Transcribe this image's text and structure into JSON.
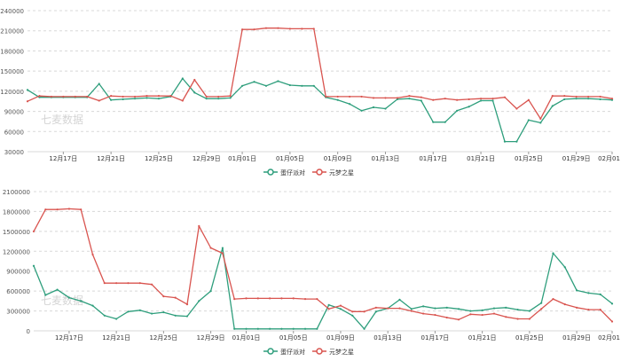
{
  "colors": {
    "series_a": "#2e9e7c",
    "series_b": "#d9544f",
    "grid": "#d8d8d8",
    "axis_text": "#333333",
    "watermark": "#b8b8b8"
  },
  "watermark_text": "七麦数据",
  "chart_data": [
    {
      "type": "line",
      "x_ticks": [
        "12月17日",
        "12月21日",
        "12月25日",
        "12月29日",
        "01月01日",
        "01月05日",
        "01月09日",
        "01月13日",
        "01月17日",
        "01月21日",
        "01月25日",
        "01月29日",
        "02月01日"
      ],
      "x_tick_index": [
        3,
        7,
        11,
        15,
        18,
        22,
        26,
        30,
        34,
        38,
        42,
        46,
        49
      ],
      "y_ticks": [
        30000,
        60000,
        90000,
        120000,
        150000,
        180000,
        210000,
        240000
      ],
      "ylim": [
        30000,
        240000
      ],
      "grid": "horizontal-dashed",
      "legend": "bottom-center",
      "series": [
        {
          "name": "蛋仔派对",
          "color": "#2e9e7c",
          "values": [
            122000,
            111000,
            111000,
            111000,
            111000,
            111000,
            131000,
            107000,
            108000,
            109000,
            110000,
            109000,
            112000,
            139000,
            118000,
            109000,
            109000,
            110000,
            128000,
            134000,
            128000,
            135000,
            129000,
            128000,
            128000,
            111000,
            107000,
            101000,
            91000,
            96000,
            94000,
            108000,
            109000,
            106000,
            74000,
            74000,
            91000,
            97000,
            106000,
            106000,
            45000,
            45000,
            77000,
            73000,
            98000,
            108000,
            109000,
            109000,
            108000,
            107000
          ]
        },
        {
          "name": "元梦之星",
          "color": "#d9544f",
          "values": [
            105000,
            113000,
            112000,
            112000,
            112000,
            112000,
            106000,
            113000,
            112000,
            112000,
            113000,
            113000,
            113000,
            106000,
            137000,
            112000,
            112000,
            113000,
            212000,
            212000,
            214000,
            214000,
            213000,
            213000,
            213000,
            112000,
            112000,
            112000,
            112000,
            110000,
            110000,
            110000,
            113000,
            111000,
            107000,
            109000,
            107000,
            108000,
            109000,
            109000,
            111000,
            94000,
            107000,
            79000,
            113000,
            113000,
            112000,
            112000,
            112000,
            109000
          ]
        }
      ]
    },
    {
      "type": "line",
      "x_ticks": [
        "12月17日",
        "12月21日",
        "12月25日",
        "12月29日",
        "01月01日",
        "01月05日",
        "01月09日",
        "01月13日",
        "01月17日",
        "01月21日",
        "01月25日",
        "01月29日",
        "02月01日"
      ],
      "x_tick_index": [
        3,
        7,
        11,
        15,
        18,
        22,
        26,
        30,
        34,
        38,
        42,
        46,
        49
      ],
      "y_ticks": [
        0,
        300000,
        600000,
        900000,
        1200000,
        1500000,
        1800000,
        2100000
      ],
      "ylim": [
        0,
        2100000
      ],
      "grid": "horizontal-dashed",
      "legend": "bottom-center",
      "series": [
        {
          "name": "蛋仔派对",
          "color": "#2e9e7c",
          "values": [
            980000,
            540000,
            620000,
            500000,
            450000,
            380000,
            230000,
            180000,
            290000,
            310000,
            260000,
            280000,
            230000,
            220000,
            450000,
            600000,
            1250000,
            30000,
            30000,
            30000,
            30000,
            30000,
            30000,
            30000,
            30000,
            390000,
            330000,
            230000,
            30000,
            290000,
            340000,
            470000,
            330000,
            370000,
            340000,
            350000,
            330000,
            300000,
            310000,
            340000,
            350000,
            320000,
            300000,
            420000,
            1170000,
            960000,
            610000,
            570000,
            550000,
            410000
          ]
        },
        {
          "name": "元梦之星",
          "color": "#d9544f",
          "values": [
            1500000,
            1830000,
            1830000,
            1840000,
            1830000,
            1150000,
            720000,
            720000,
            720000,
            720000,
            700000,
            520000,
            500000,
            400000,
            1580000,
            1250000,
            1170000,
            480000,
            490000,
            490000,
            490000,
            490000,
            490000,
            480000,
            480000,
            330000,
            380000,
            290000,
            290000,
            350000,
            340000,
            340000,
            300000,
            260000,
            240000,
            200000,
            170000,
            250000,
            240000,
            260000,
            210000,
            180000,
            180000,
            330000,
            480000,
            400000,
            350000,
            320000,
            320000,
            140000
          ]
        }
      ]
    }
  ]
}
